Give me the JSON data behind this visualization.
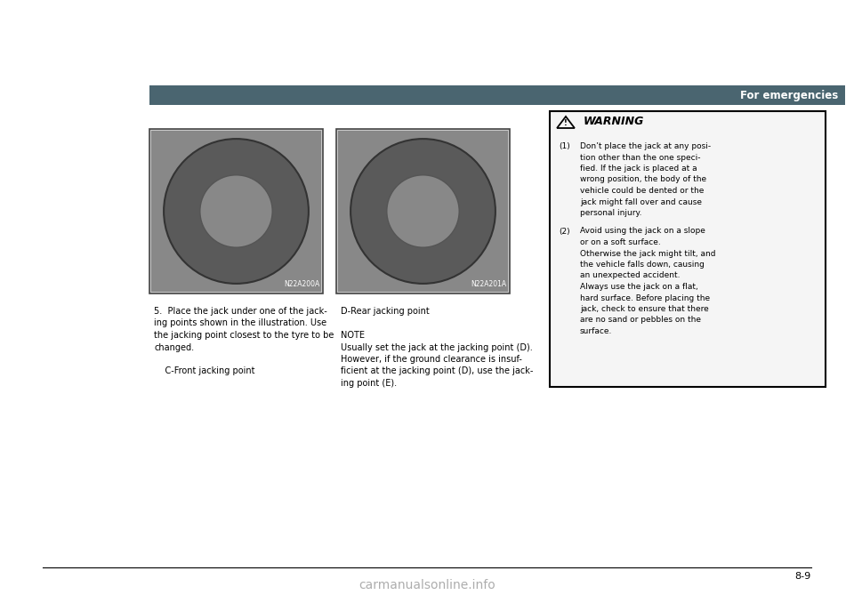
{
  "page_bg": "#ffffff",
  "header_bg": "#4a6741",
  "header_text": "For emergencies",
  "header_text_color": "#ffffff",
  "img1_label": "N22A200A",
  "img2_label": "N22A201A",
  "warning_box_bg": "#f5f5f5",
  "warning_box_border": "#000000",
  "step5_text_1": "5.  Place the jack under one of the jack-",
  "step5_text_2": "ing points shown in the illustration. Use",
  "step5_text_3": "the jacking point closest to the tyre to be",
  "step5_text_4": "changed.",
  "step5_text_5": "C-Front jacking point",
  "right_col_line1": "D-Rear jacking point",
  "right_col_line2": "NOTE",
  "right_col_line3": "Usually set the jack at the jacking point (D).",
  "right_col_line4": "However, if the ground clearance is insuf-",
  "right_col_line5": "ficient at the jacking point (D), use the jack-",
  "right_col_line6": "ing point (E).",
  "warning_1_text_lines": [
    "Don’t place the jack at any posi-",
    "tion other than the one speci-",
    "fied. If the jack is placed at a",
    "wrong position, the body of the",
    "vehicle could be dented or the",
    "jack might fall over and cause",
    "personal injury."
  ],
  "warning_2_text_lines": [
    "Avoid using the jack on a slope",
    "or on a soft surface.",
    "Otherwise the jack might tilt, and",
    "the vehicle falls down, causing",
    "an unexpected accident.",
    "Always use the jack on a flat,",
    "hard surface. Before placing the",
    "jack, check to ensure that there",
    "are no sand or pebbles on the",
    "surface."
  ],
  "page_num": "8-9",
  "watermark_text": "carmanualsonline.info"
}
